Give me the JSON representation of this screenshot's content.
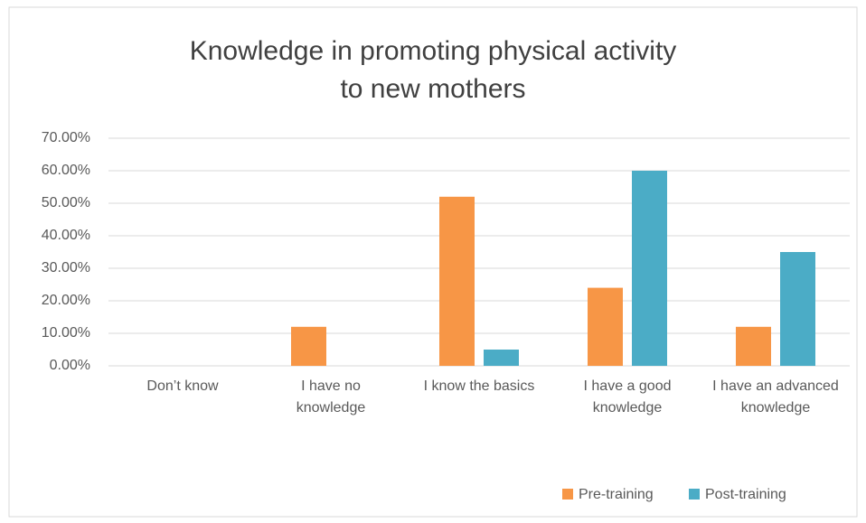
{
  "chart_data": {
    "type": "bar",
    "title": "Knowledge in promoting physical activity to new mothers",
    "categories": [
      "Don’t know",
      "I have no knowledge",
      "I know the basics",
      "I have a good knowledge",
      "I have an advanced knowledge"
    ],
    "series": [
      {
        "name": "Pre-training",
        "color": "#f79646",
        "values": [
          0,
          12,
          52,
          24,
          12
        ]
      },
      {
        "name": "Post-training",
        "color": "#4bacc6",
        "values": [
          0,
          0,
          5,
          60,
          35
        ]
      }
    ],
    "ylim": [
      0,
      70
    ],
    "yticks": [
      {
        "value": 0,
        "label": "0.00%"
      },
      {
        "value": 10,
        "label": "10.00%"
      },
      {
        "value": 20,
        "label": "20.00%"
      },
      {
        "value": 30,
        "label": "30.00%"
      },
      {
        "value": 40,
        "label": "40.00%"
      },
      {
        "value": 50,
        "label": "50.00%"
      },
      {
        "value": 60,
        "label": "60.00%"
      },
      {
        "value": 70,
        "label": "70.00%"
      }
    ],
    "grid": true,
    "legend": "bottom"
  }
}
